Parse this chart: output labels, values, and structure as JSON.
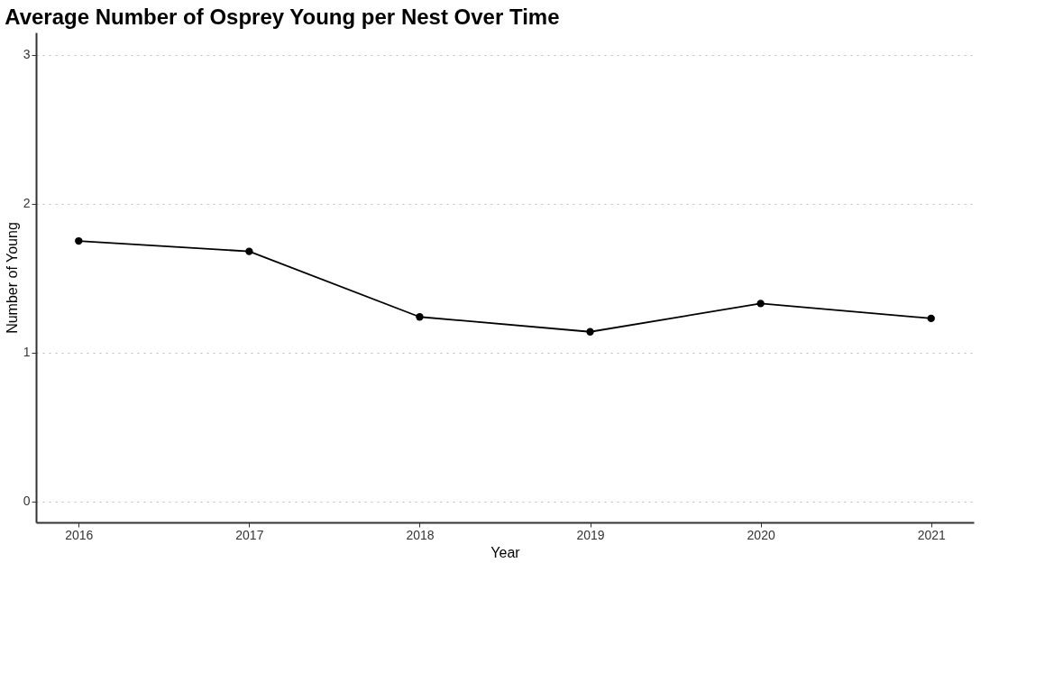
{
  "chart_data": {
    "type": "line",
    "title": "Average Number of Osprey Young per Nest Over Time",
    "xlabel": "Year",
    "ylabel": "Number of Young",
    "x": [
      2016,
      2017,
      2018,
      2019,
      2020,
      2021
    ],
    "series": [
      {
        "color": "#000000",
        "values": [
          1.75,
          1.68,
          1.24,
          1.14,
          1.33,
          1.23
        ]
      }
    ],
    "xlim": [
      2015.75,
      2021.25
    ],
    "xticks": [
      2016,
      2017,
      2018,
      2019,
      2020,
      2021
    ],
    "ylim": [
      -0.14,
      3.15
    ],
    "yticks": [
      0,
      1,
      2,
      3
    ],
    "grid": "y",
    "marker": "circle",
    "line_style": "solid"
  }
}
